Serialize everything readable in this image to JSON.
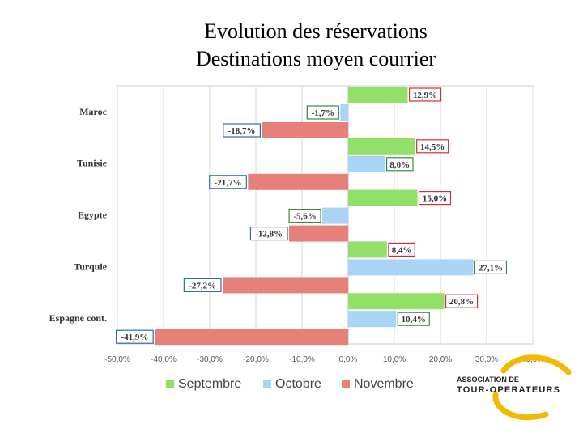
{
  "page": {
    "title_line1": "Evolution des réservations",
    "title_line2": "Destinations moyen courrier"
  },
  "logo": {
    "line1": "ASSOCIATION DE",
    "line2": "TOUR-OPERATEURS",
    "accent_color": "#f2b900"
  },
  "chart_data": {
    "type": "bar",
    "orientation": "horizontal",
    "categories": [
      "Maroc",
      "Tunisie",
      "Egypte",
      "Turquie",
      "Espagne cont."
    ],
    "series": [
      {
        "name": "Septembre",
        "color": "#92e06a",
        "label_border": "#d03030",
        "values": [
          12.9,
          14.5,
          15.0,
          8.4,
          20.8
        ],
        "labels": [
          "12,9%",
          "14,5%",
          "15,0%",
          "8,4%",
          "20,8%"
        ]
      },
      {
        "name": "Octobre",
        "color": "#a9d4f5",
        "label_border": "#3a8a3a",
        "values": [
          -1.7,
          8.0,
          -5.6,
          27.1,
          10.4
        ],
        "labels": [
          "-1,7%",
          "8,0%",
          "-5,6%",
          "27,1%",
          "10,4%"
        ]
      },
      {
        "name": "Novembre",
        "color": "#e8807a",
        "label_border": "#2a6fb0",
        "values": [
          -18.7,
          -21.7,
          -12.8,
          -27.2,
          -41.9
        ],
        "labels": [
          "-18,7%",
          "-21,7%",
          "-12,8%",
          "-27,2%",
          "-41,9%"
        ]
      }
    ],
    "xlim": [
      -50,
      40
    ],
    "xticks": [
      -50,
      -40,
      -30,
      -20,
      -10,
      0,
      10,
      20,
      30,
      40
    ],
    "xtick_labels": [
      "-50,0%",
      "-40,0%",
      "-30,0%",
      "-20,0%",
      "-10,0%",
      "0,0%",
      "10,0%",
      "20,0%",
      "30,0%",
      "40,0%"
    ],
    "grid": true,
    "legend_position": "bottom"
  }
}
